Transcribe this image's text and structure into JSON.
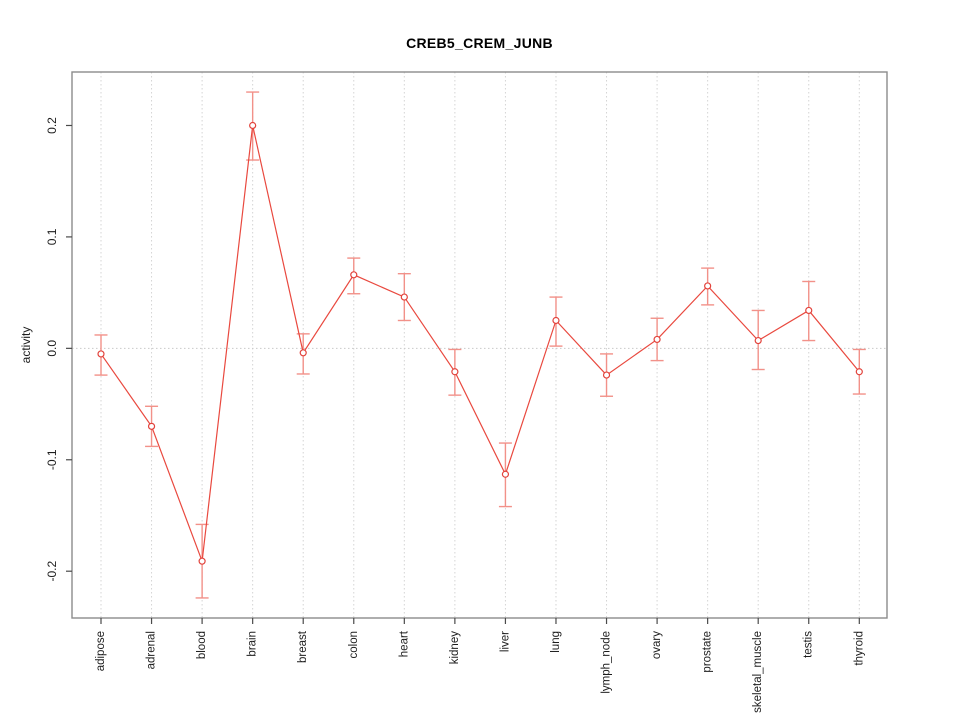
{
  "page": {
    "background": "#ffffff"
  },
  "chart_data": {
    "type": "line",
    "title": "CREB5_CREM_JUNB",
    "xlabel": "",
    "ylabel": "activity",
    "categories": [
      "adipose",
      "adrenal",
      "blood",
      "brain",
      "breast",
      "colon",
      "heart",
      "kidney",
      "liver",
      "lung",
      "lymph_node",
      "ovary",
      "prostate",
      "skeletal_muscle",
      "testis",
      "thyroid"
    ],
    "series": [
      {
        "name": "CREB5_CREM_JUNB",
        "values": [
          -0.005,
          -0.07,
          -0.191,
          0.2,
          -0.004,
          0.066,
          0.046,
          -0.021,
          -0.113,
          0.025,
          -0.024,
          0.008,
          0.056,
          0.007,
          0.034,
          -0.021
        ],
        "upper": [
          0.012,
          -0.052,
          -0.158,
          0.23,
          0.013,
          0.081,
          0.067,
          -0.001,
          -0.085,
          0.046,
          -0.005,
          0.027,
          0.072,
          0.034,
          0.06,
          -0.001
        ],
        "lower": [
          -0.024,
          -0.088,
          -0.224,
          0.169,
          -0.023,
          0.049,
          0.025,
          -0.042,
          -0.142,
          0.002,
          -0.043,
          -0.011,
          0.039,
          -0.019,
          0.007,
          -0.041
        ]
      }
    ],
    "yticks": [
      -0.2,
      -0.1,
      0.0,
      0.1,
      0.2
    ],
    "ytick_labels": [
      "-0.2",
      "-0.1",
      "0.0",
      "0.1",
      "0.2"
    ],
    "ylim": [
      -0.242,
      0.248
    ],
    "legend_position": "none",
    "grid": {
      "vertical_dotted": true,
      "horizontal_zero_dotted": true
    },
    "marker": "open-circle",
    "colors": {
      "line": "#e9493f",
      "marker": "#e2433c",
      "error_bar": "#f29189",
      "grid": "#d4d4d4",
      "zero_line": "#c9c9c9",
      "axis": "#8c8c8c",
      "tick": "#4a4a4a",
      "text": "#1c1c1c"
    }
  }
}
